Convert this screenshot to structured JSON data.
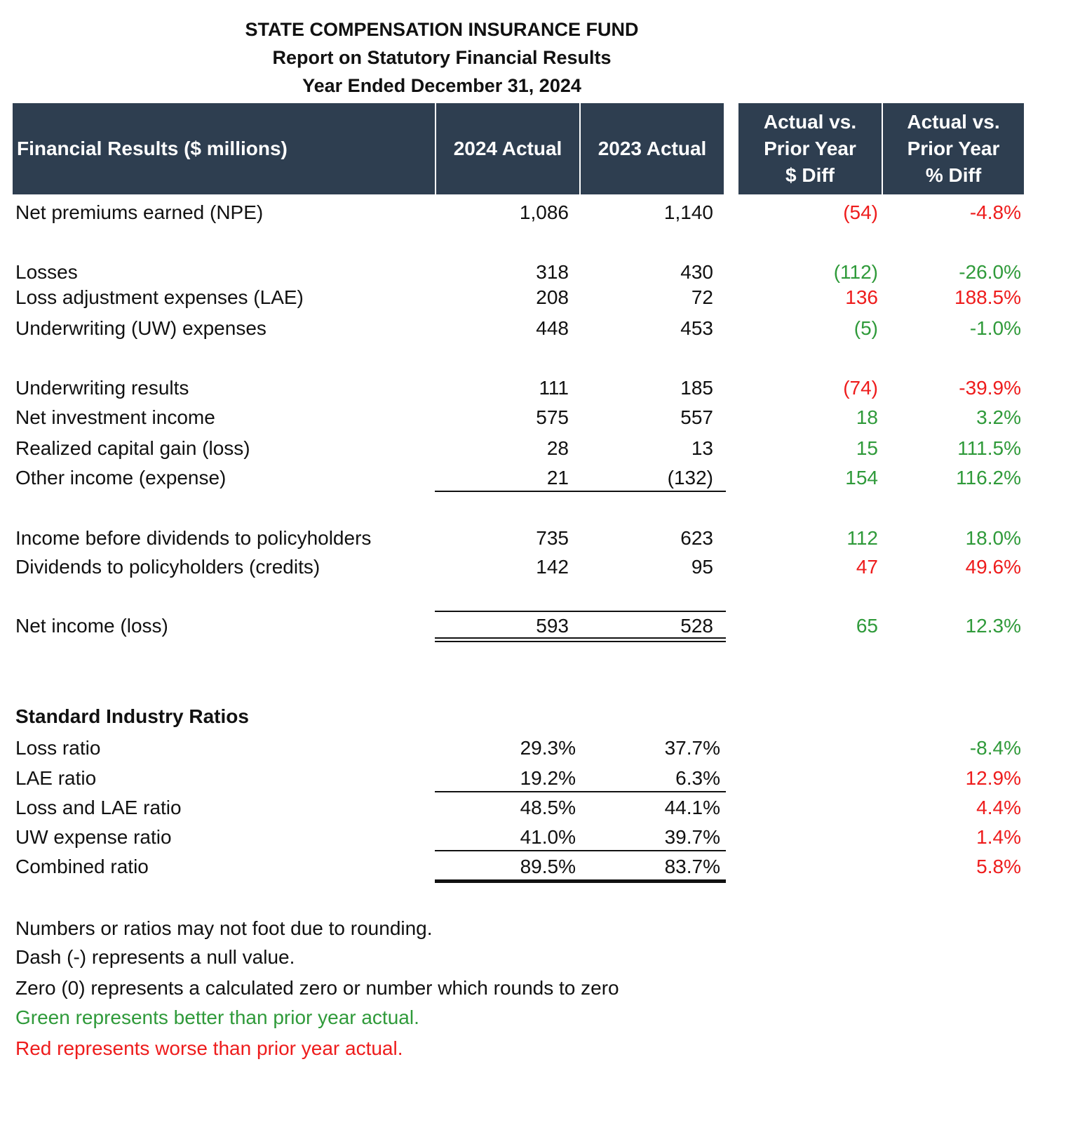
{
  "header": {
    "title": "STATE COMPENSATION INSURANCE FUND",
    "subtitle": "Report on Statutory Financial Results",
    "period": "Year Ended December 31, 2024"
  },
  "colors": {
    "red": "#ee1c1c",
    "green": "#2f9a3a",
    "header_fill": "#2e3e50"
  },
  "table": {
    "columns": [
      [
        "Financial Results ($ millions)"
      ],
      [
        "2024 Actual"
      ],
      [
        "2023 Actual"
      ],
      [
        "Actual vs.",
        "Prior Year",
        "$ Diff"
      ],
      [
        "Actual vs.",
        "Prior Year",
        "% Diff"
      ]
    ],
    "rows": [
      {
        "label": "Net premiums earned (NPE)",
        "actual_2024": "1,086",
        "actual_2023": "1,140",
        "diff": "(54)",
        "pct": "-4.8%",
        "tone": "red"
      },
      {
        "label": "Losses",
        "actual_2024": "318",
        "actual_2023": "430",
        "diff": "(112)",
        "pct": "-26.0%",
        "tone": "green"
      },
      {
        "label": "Loss adjustment expenses (LAE)",
        "actual_2024": "208",
        "actual_2023": "72",
        "diff": "136",
        "pct": "188.5%",
        "tone": "red"
      },
      {
        "label": "Underwriting (UW) expenses",
        "actual_2024": "448",
        "actual_2023": "453",
        "diff": "(5)",
        "pct": "-1.0%",
        "tone": "green"
      },
      {
        "label": "Underwriting results",
        "actual_2024": "111",
        "actual_2023": "185",
        "diff": "(74)",
        "pct": "-39.9%",
        "tone": "red"
      },
      {
        "label": "Net investment income",
        "actual_2024": "575",
        "actual_2023": "557",
        "diff": "18",
        "pct": "3.2%",
        "tone": "green"
      },
      {
        "label": "Realized capital gain (loss)",
        "actual_2024": "28",
        "actual_2023": "13",
        "diff": "15",
        "pct": "111.5%",
        "tone": "green"
      },
      {
        "label": "Other income (expense)",
        "actual_2024": "21",
        "actual_2023": "(132)",
        "diff": "154",
        "pct": "116.2%",
        "tone": "green"
      },
      {
        "label": "Income before dividends to policyholders",
        "actual_2024": "735",
        "actual_2023": "623",
        "diff": "112",
        "pct": "18.0%",
        "tone": "green"
      },
      {
        "label": "Dividends to policyholders (credits)",
        "actual_2024": "142",
        "actual_2023": "95",
        "diff": "47",
        "pct": "49.6%",
        "tone": "red"
      },
      {
        "label": "Net income (loss)",
        "actual_2024": "593",
        "actual_2023": "528",
        "diff": "65",
        "pct": "12.3%",
        "tone": "green"
      }
    ]
  },
  "ratios": {
    "title": "Standard Industry Ratios",
    "rows": [
      {
        "label": "Loss ratio",
        "actual_2024": "29.3%",
        "actual_2023": "37.7%",
        "pct": "-8.4%",
        "tone": "green"
      },
      {
        "label": "LAE ratio",
        "actual_2024": "19.2%",
        "actual_2023": "6.3%",
        "pct": "12.9%",
        "tone": "red"
      },
      {
        "label": "Loss and LAE ratio",
        "actual_2024": "48.5%",
        "actual_2023": "44.1%",
        "pct": "4.4%",
        "tone": "red"
      },
      {
        "label": "UW expense ratio",
        "actual_2024": "41.0%",
        "actual_2023": "39.7%",
        "pct": "1.4%",
        "tone": "red"
      },
      {
        "label": "Combined ratio",
        "actual_2024": "89.5%",
        "actual_2023": "83.7%",
        "pct": "5.8%",
        "tone": "red"
      }
    ]
  },
  "footnotes": [
    {
      "text": "Numbers or ratios may not foot due to rounding."
    },
    {
      "text": "Dash (-) represents a null value."
    },
    {
      "text": "Zero (0) represents a calculated zero or number which rounds to zero"
    },
    {
      "text": "Green represents better than prior year actual.",
      "tone": "green"
    },
    {
      "text": "Red represents worse than prior year actual.",
      "tone": "red"
    }
  ]
}
